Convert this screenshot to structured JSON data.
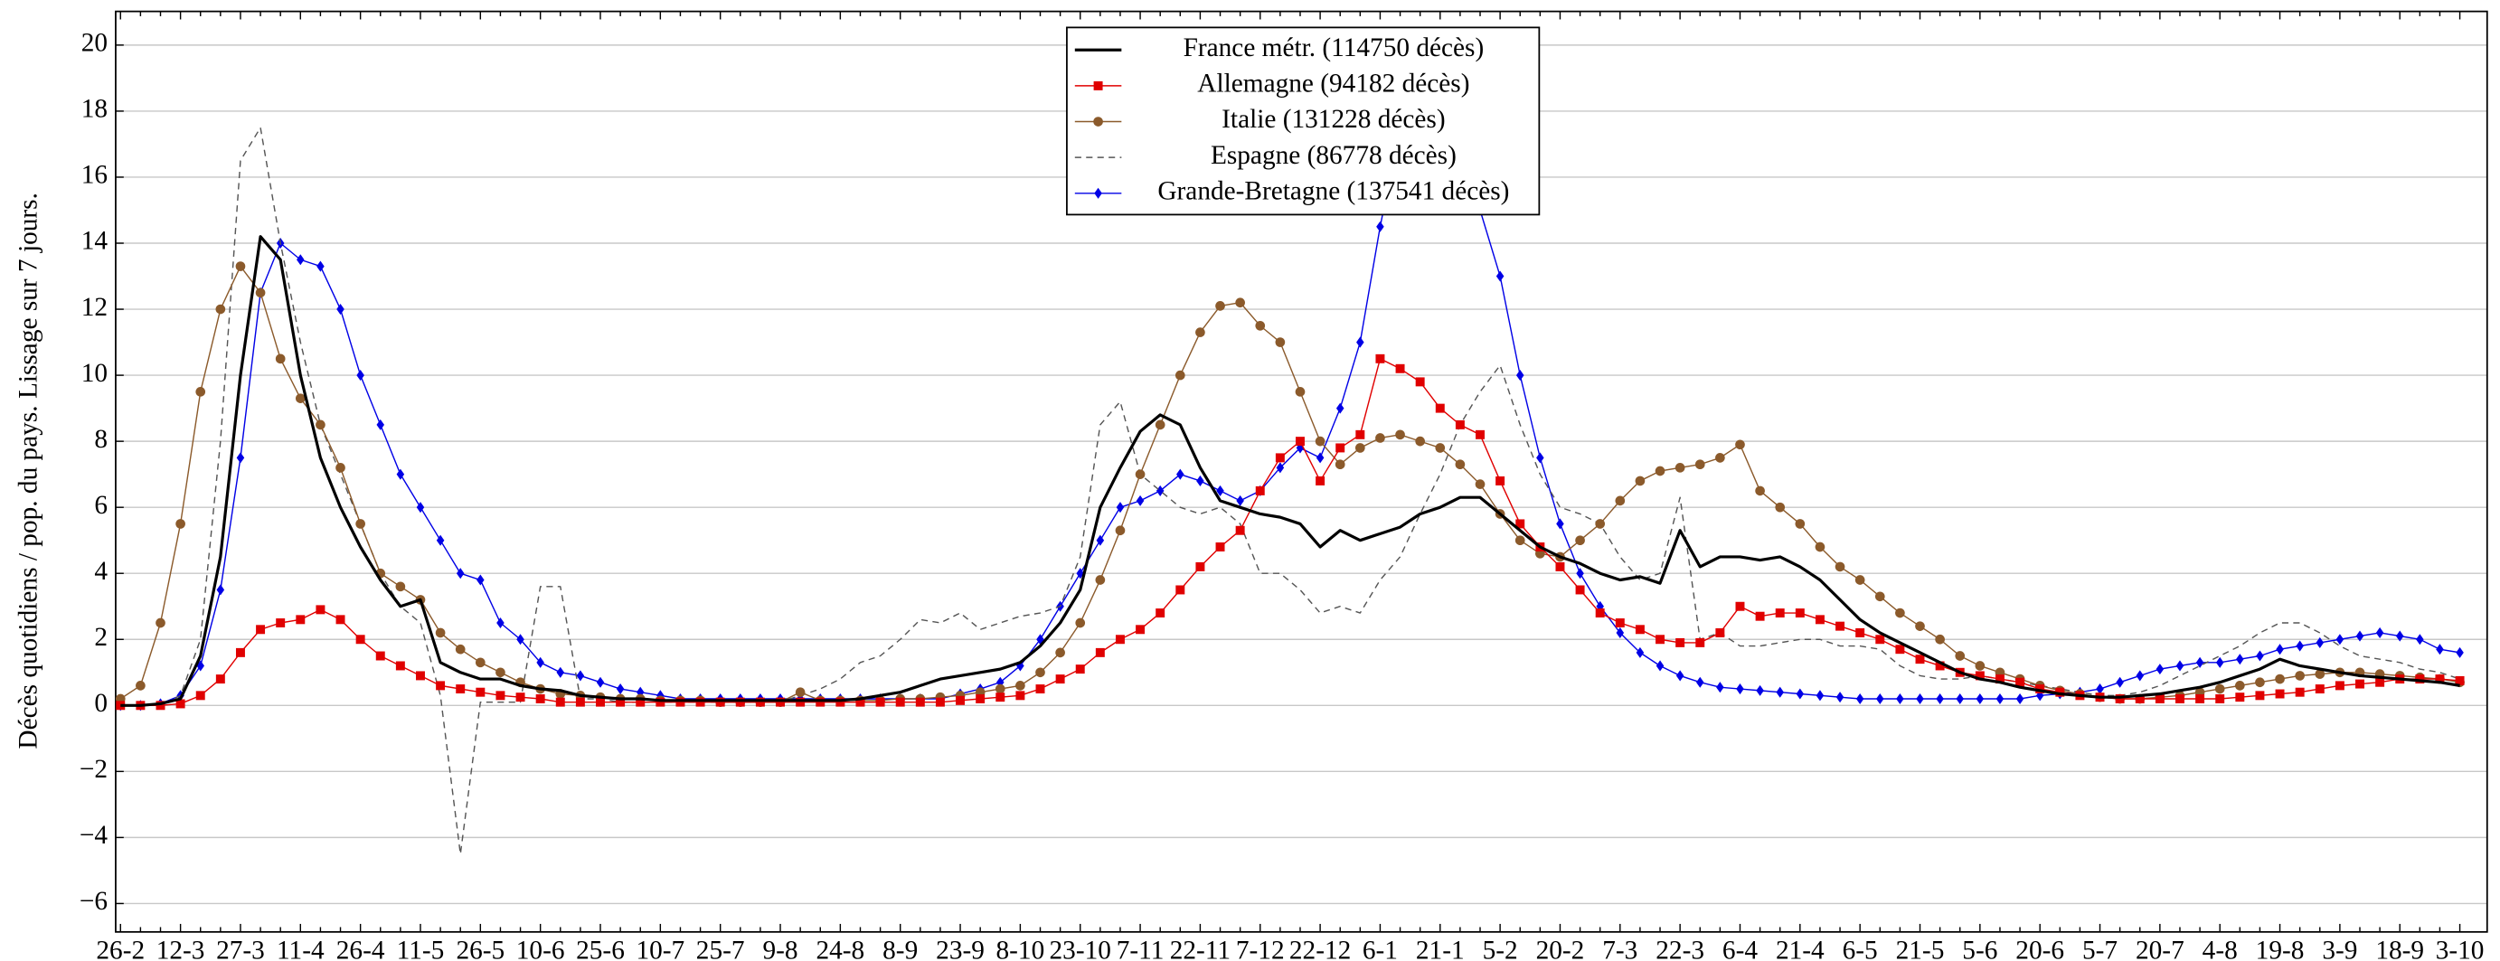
{
  "chart_data": {
    "type": "line",
    "ylabel": "Décès quotidiens / pop. du pays. Lissage sur 7 jours.",
    "categories": [
      "26-2",
      null,
      null,
      "12-3",
      null,
      null,
      "27-3",
      null,
      null,
      "11-4",
      null,
      null,
      "26-4",
      null,
      null,
      "11-5",
      null,
      null,
      "26-5",
      null,
      null,
      "10-6",
      null,
      null,
      "25-6",
      null,
      null,
      "10-7",
      null,
      null,
      "25-7",
      null,
      null,
      "9-8",
      null,
      null,
      "24-8",
      null,
      null,
      "8-9",
      null,
      null,
      "23-9",
      null,
      null,
      "8-10",
      null,
      null,
      "23-10",
      null,
      null,
      "7-11",
      null,
      null,
      "22-11",
      null,
      null,
      "7-12",
      null,
      null,
      "22-12",
      null,
      null,
      "6-1",
      null,
      null,
      "21-1",
      null,
      null,
      "5-2",
      null,
      null,
      "20-2",
      null,
      null,
      "7-3",
      null,
      null,
      "22-3",
      null,
      null,
      "6-4",
      null,
      null,
      "21-4",
      null,
      null,
      "6-5",
      null,
      null,
      "21-5",
      null,
      null,
      "5-6",
      null,
      null,
      "20-6",
      null,
      null,
      "5-7",
      null,
      null,
      "20-7",
      null,
      null,
      "4-8",
      null,
      null,
      "19-8",
      null,
      null,
      "3-9",
      null,
      null,
      "18-9",
      null,
      null,
      "3-10"
    ],
    "ylim": [
      -6.86,
      21.02
    ],
    "yticks": [
      {
        "value": -6,
        "label": "−6"
      },
      {
        "value": -4,
        "label": "−4"
      },
      {
        "value": -2,
        "label": "−2"
      },
      0,
      2,
      4,
      6,
      8,
      10,
      12,
      14,
      16,
      18,
      20
    ],
    "grid": true,
    "legend": "top-center",
    "series": [
      {
        "name": "France métr. (114750 décès)",
        "color": "#000000",
        "marker": "none",
        "dashed": false,
        "values": [
          0,
          0,
          0.05,
          0.2,
          1.5,
          4.5,
          10,
          14.2,
          13.5,
          10,
          7.5,
          6,
          4.8,
          3.8,
          3,
          3.2,
          1.3,
          1,
          0.8,
          0.8,
          0.6,
          0.5,
          0.45,
          0.3,
          0.25,
          0.2,
          0.2,
          0.15,
          0.15,
          0.15,
          0.15,
          0.15,
          0.15,
          0.15,
          0.15,
          0.15,
          0.15,
          0.2,
          0.3,
          0.4,
          0.6,
          0.8,
          0.9,
          1.0,
          1.1,
          1.3,
          1.8,
          2.5,
          3.5,
          6,
          7.2,
          8.3,
          8.8,
          8.5,
          7.2,
          6.2,
          6,
          5.8,
          5.7,
          5.5,
          4.8,
          5.3,
          5,
          5.2,
          5.4,
          5.8,
          6,
          6.3,
          6.3,
          5.8,
          5.3,
          4.8,
          4.5,
          4.3,
          4,
          3.8,
          3.9,
          3.7,
          5.3,
          4.2,
          4.5,
          4.5,
          4.4,
          4.5,
          4.2,
          3.8,
          3.2,
          2.6,
          2.2,
          1.9,
          1.6,
          1.3,
          1,
          0.8,
          0.7,
          0.55,
          0.45,
          0.35,
          0.3,
          0.25,
          0.25,
          0.3,
          0.35,
          0.45,
          0.55,
          0.7,
          0.9,
          1.1,
          1.4,
          1.2,
          1.1,
          1,
          0.9,
          0.85,
          0.8,
          0.75,
          0.7,
          0.6
        ]
      },
      {
        "name": "Allemagne (94182 décès)",
        "color": "#e00000",
        "marker": "square",
        "dashed": false,
        "values": [
          0,
          0,
          0,
          0.05,
          0.3,
          0.8,
          1.6,
          2.3,
          2.5,
          2.6,
          2.9,
          2.6,
          2,
          1.5,
          1.2,
          0.9,
          0.6,
          0.5,
          0.4,
          0.3,
          0.25,
          0.2,
          0.1,
          0.1,
          0.1,
          0.1,
          0.1,
          0.1,
          0.1,
          0.1,
          0.1,
          0.1,
          0.1,
          0.1,
          0.1,
          0.1,
          0.1,
          0.1,
          0.1,
          0.1,
          0.1,
          0.1,
          0.15,
          0.2,
          0.25,
          0.3,
          0.5,
          0.8,
          1.1,
          1.6,
          2,
          2.3,
          2.8,
          3.5,
          4.2,
          4.8,
          5.3,
          6.5,
          7.5,
          8,
          6.8,
          7.8,
          8.2,
          10.5,
          10.2,
          9.8,
          9,
          8.5,
          8.2,
          6.8,
          5.5,
          4.8,
          4.2,
          3.5,
          2.8,
          2.5,
          2.3,
          2,
          1.9,
          1.9,
          2.2,
          3,
          2.7,
          2.8,
          2.8,
          2.6,
          2.4,
          2.2,
          2,
          1.7,
          1.4,
          1.2,
          1,
          0.9,
          0.8,
          0.7,
          0.5,
          0.4,
          0.3,
          0.25,
          0.2,
          0.2,
          0.2,
          0.2,
          0.2,
          0.2,
          0.25,
          0.3,
          0.35,
          0.4,
          0.5,
          0.6,
          0.65,
          0.7,
          0.8,
          0.8,
          0.8,
          0.75
        ]
      },
      {
        "name": "Italie (131228 décès)",
        "color": "#8b5a2b",
        "marker": "circle",
        "dashed": false,
        "values": [
          0.2,
          0.6,
          2.5,
          5.5,
          9.5,
          12,
          13.3,
          12.5,
          10.5,
          9.3,
          8.5,
          7.2,
          5.5,
          4,
          3.6,
          3.2,
          2.2,
          1.7,
          1.3,
          1,
          0.7,
          0.5,
          0.35,
          0.3,
          0.25,
          0.2,
          0.2,
          0.15,
          0.15,
          0.15,
          0.1,
          0.1,
          0.1,
          0.1,
          0.4,
          0.15,
          0.15,
          0.15,
          0.15,
          0.2,
          0.2,
          0.25,
          0.3,
          0.4,
          0.5,
          0.6,
          1,
          1.6,
          2.5,
          3.8,
          5.3,
          7,
          8.5,
          10,
          11.3,
          12.1,
          12.2,
          11.5,
          11,
          9.5,
          8,
          7.3,
          7.8,
          8.1,
          8.2,
          8,
          7.8,
          7.3,
          6.7,
          5.8,
          5,
          4.6,
          4.5,
          5,
          5.5,
          6.2,
          6.8,
          7.1,
          7.2,
          7.3,
          7.5,
          7.9,
          6.5,
          6,
          5.5,
          4.8,
          4.2,
          3.8,
          3.3,
          2.8,
          2.4,
          2,
          1.5,
          1.2,
          1,
          0.8,
          0.6,
          0.45,
          0.35,
          0.25,
          0.2,
          0.2,
          0.25,
          0.3,
          0.4,
          0.5,
          0.6,
          0.7,
          0.8,
          0.9,
          0.95,
          1,
          1,
          0.95,
          0.9,
          0.85,
          0.8,
          0.7
        ]
      },
      {
        "name": "Espagne (86778 décès)",
        "color": "#555555",
        "marker": "none",
        "dashed": true,
        "values": [
          0,
          0,
          0,
          0.3,
          2,
          8,
          16.5,
          17.5,
          14,
          11,
          8.5,
          7,
          5.5,
          4,
          3,
          2.5,
          0.3,
          -4.5,
          0.1,
          0.1,
          0.1,
          3.6,
          3.6,
          0.2,
          0.2,
          0.1,
          0.1,
          0.1,
          0.1,
          0.1,
          0.1,
          0.1,
          0.1,
          0.1,
          0.3,
          0.5,
          0.8,
          1.3,
          1.5,
          2,
          2.6,
          2.5,
          2.8,
          2.3,
          2.5,
          2.7,
          2.8,
          3,
          4.5,
          8.5,
          9.2,
          7,
          6.5,
          6,
          5.8,
          6,
          5.5,
          4,
          4,
          3.5,
          2.8,
          3,
          2.8,
          3.8,
          4.5,
          5.8,
          7,
          8.5,
          9.5,
          10.3,
          8.5,
          7,
          6,
          5.8,
          5.5,
          4.5,
          3.8,
          4,
          6.3,
          2,
          2.2,
          1.8,
          1.8,
          1.9,
          2,
          2,
          1.8,
          1.8,
          1.7,
          1.2,
          0.9,
          0.8,
          0.8,
          0.9,
          0.8,
          0.7,
          0.6,
          0.5,
          0.4,
          0.3,
          0.3,
          0.4,
          0.6,
          0.9,
          1.2,
          1.5,
          1.8,
          2.2,
          2.5,
          2.5,
          2.2,
          1.8,
          1.5,
          1.4,
          1.3,
          1.1,
          1,
          0.8
        ]
      },
      {
        "name": "Grande-Bretagne (137541 décès)",
        "color": "#0000e6",
        "marker": "diamond",
        "dashed": false,
        "values": [
          0,
          0,
          0.05,
          0.3,
          1.2,
          3.5,
          7.5,
          12.5,
          14,
          13.5,
          13.3,
          12,
          10,
          8.5,
          7,
          6,
          5,
          4,
          3.8,
          2.5,
          2,
          1.3,
          1,
          0.9,
          0.7,
          0.5,
          0.4,
          0.3,
          0.2,
          0.2,
          0.2,
          0.2,
          0.2,
          0.2,
          0.2,
          0.2,
          0.2,
          0.2,
          0.2,
          0.2,
          0.2,
          0.2,
          0.35,
          0.5,
          0.7,
          1.2,
          2,
          3,
          4,
          5,
          6,
          6.2,
          6.5,
          7,
          6.8,
          6.5,
          6.2,
          6.5,
          7.2,
          7.8,
          7.5,
          9,
          11,
          14.5,
          17.5,
          19,
          19,
          17.5,
          15,
          13,
          10,
          7.5,
          5.5,
          4,
          3,
          2.2,
          1.6,
          1.2,
          0.9,
          0.7,
          0.55,
          0.5,
          0.45,
          0.4,
          0.35,
          0.3,
          0.25,
          0.2,
          0.2,
          0.2,
          0.2,
          0.2,
          0.2,
          0.2,
          0.2,
          0.2,
          0.3,
          0.35,
          0.4,
          0.5,
          0.7,
          0.9,
          1.1,
          1.2,
          1.3,
          1.3,
          1.4,
          1.5,
          1.7,
          1.8,
          1.9,
          2,
          2.1,
          2.2,
          2.1,
          2,
          1.7,
          1.6
        ]
      }
    ]
  }
}
